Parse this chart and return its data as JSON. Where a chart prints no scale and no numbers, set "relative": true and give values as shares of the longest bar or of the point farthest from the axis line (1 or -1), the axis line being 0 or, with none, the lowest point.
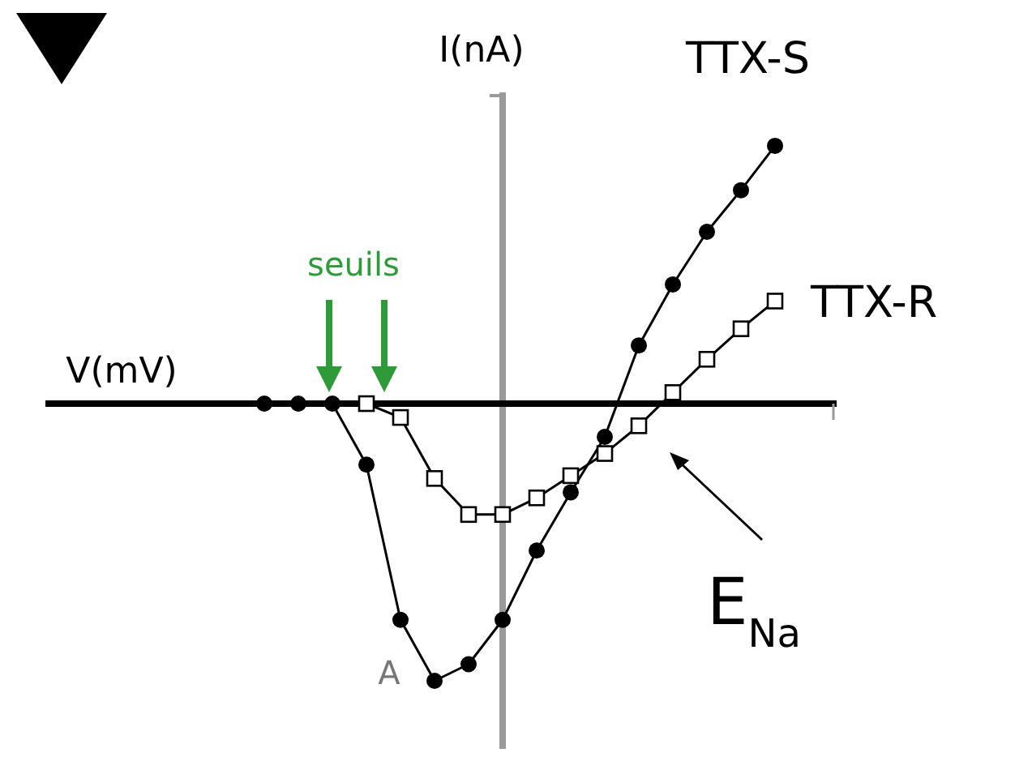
{
  "chart_data": {
    "type": "line",
    "relative": true,
    "xlabel": "V(mV)",
    "ylabel": "I(nA)",
    "categories": [
      null,
      null,
      null,
      null,
      null,
      null,
      null,
      null,
      null,
      null,
      null,
      null,
      null,
      null,
      null,
      null
    ],
    "series": [
      {
        "name": "TTX-S",
        "color": "#000000",
        "marker": "circle",
        "values": [
          0,
          0,
          0,
          -0.22,
          -0.78,
          -1,
          -0.94,
          -0.78,
          -0.53,
          -0.32,
          -0.12,
          0.21,
          0.43,
          0.62,
          0.77,
          0.93
        ]
      },
      {
        "name": "TTX-R",
        "color": "#000000",
        "marker": "square",
        "values": [
          null,
          null,
          null,
          0,
          -0.05,
          -0.27,
          -0.4,
          -0.4,
          -0.34,
          -0.26,
          -0.18,
          -0.08,
          0.04,
          0.16,
          0.27,
          0.37
        ]
      }
    ],
    "annotations": [
      "seuils",
      "A",
      "E$_{Na}$"
    ]
  }
}
